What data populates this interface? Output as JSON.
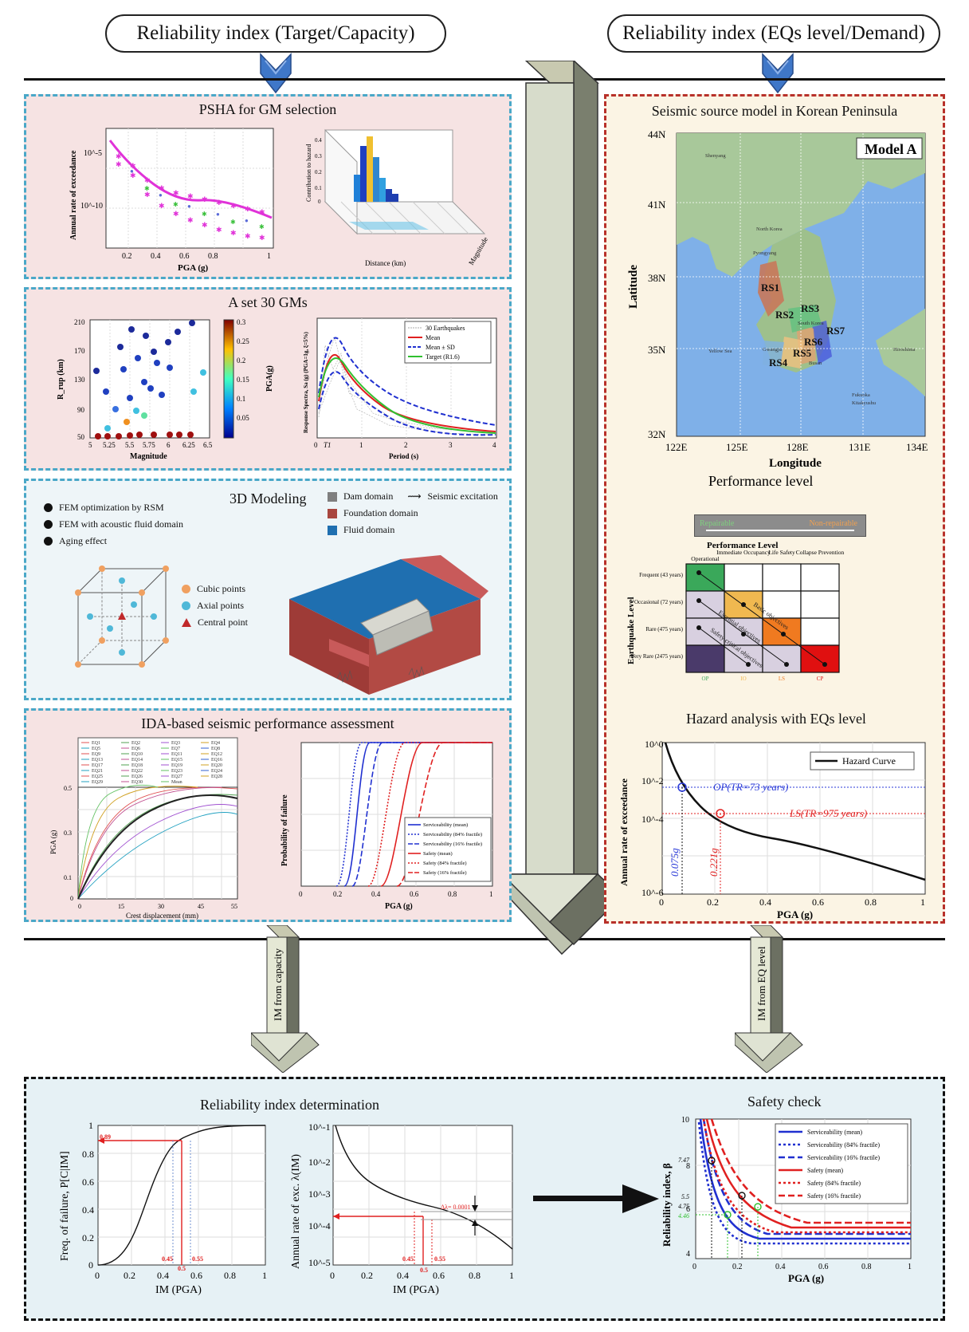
{
  "header": {
    "left_pill": "Reliability index (Target/Capacity)",
    "right_pill": "Reliability index (EQs level/Demand)"
  },
  "left": {
    "psha": {
      "title": "PSHA for GM selection",
      "ylabel": "Annual rate of exceedance",
      "xlabel": "PGA (g)",
      "xticks": [
        "0.2",
        "0.4",
        "0.6",
        "0.8",
        "1"
      ],
      "yticks": [
        "10^-5",
        "10^-10"
      ],
      "deagg_zlabel": "Contribution to hazard",
      "deagg_xlabel": "Distance (km)",
      "deagg_ylabel": "Magnitude",
      "deagg_zticks": [
        "0.4",
        "0.3",
        "0.2",
        "0.1",
        "0"
      ]
    },
    "gm_set": {
      "title": "A set 30 GMs",
      "scatter_ylabel": "R_rup (km)",
      "scatter_xlabel": "Magnitude",
      "scatter_xticks": [
        "5",
        "5.25",
        "5.5",
        "5.75",
        "6",
        "6.25",
        "6.5"
      ],
      "scatter_yticks": [
        "210",
        "170",
        "130",
        "90",
        "50"
      ],
      "colorbar_label": "PGA(g)",
      "colorbar_ticks": [
        "0.3",
        "0.25",
        "0.2",
        "0.15",
        "0.1",
        "0.05"
      ],
      "spectra_ylabel": "Response Spectra, Sa (g) (PGA=1g, ξ=5%)",
      "spectra_xlabel": "Period (s)",
      "spectra_xticks": [
        "0",
        "1",
        "2",
        "3",
        "4"
      ],
      "spectra_t1": "T1",
      "spectra_legend": [
        "30 Earthquakes",
        "Mean",
        "Mean ± SD",
        "Target (R1.6)"
      ]
    },
    "modeling": {
      "title": "3D Modeling",
      "bullets": [
        "FEM optimization by RSM",
        "FEM with acoustic fluid domain",
        "Aging effect"
      ],
      "cube_legend": [
        "Cubic points",
        "Axial points",
        "Central point"
      ],
      "domain_legend": [
        "Dam domain",
        "Foundation domain",
        "Fluid domain"
      ],
      "excitation_label": "Seismic excitation",
      "colors": {
        "dam": "#7f7f7f",
        "foundation": "#a8463f",
        "fluid": "#1f6fb0",
        "cubic": "#f0a060",
        "axial": "#4fb8d8",
        "central": "#c0282a"
      }
    },
    "ida": {
      "title": "IDA-based seismic performance assessment",
      "ida_ylabel": "PGA (g)",
      "ida_xlabel": "Crest displacement (mm)",
      "ida_xticks": [
        "0",
        "5",
        "10",
        "15",
        "20",
        "25",
        "30",
        "35",
        "40",
        "45",
        "50",
        "55"
      ],
      "ida_yticks": [
        "0.5",
        "0.45",
        "0.4",
        "0.35",
        "0.3",
        "0.25",
        "0.2",
        "0.15",
        "0.1",
        "0.05",
        "0"
      ],
      "ida_legend": [
        "EQ1",
        "EQ2",
        "EQ3",
        "EQ4",
        "EQ5",
        "EQ6",
        "EQ7",
        "EQ8",
        "EQ9",
        "EQ10",
        "EQ11",
        "EQ12",
        "EQ13",
        "EQ14",
        "EQ15",
        "EQ16",
        "EQ17",
        "EQ18",
        "EQ19",
        "EQ20",
        "EQ21",
        "EQ22",
        "EQ23",
        "EQ24",
        "EQ25",
        "EQ26",
        "EQ27",
        "EQ28",
        "EQ29",
        "EQ30",
        "Mean"
      ],
      "frag_ylabel": "Probability of failure",
      "frag_xlabel": "PGA (g)",
      "frag_xticks": [
        "0",
        "0.2",
        "0.4",
        "0.6",
        "0.8",
        "1"
      ],
      "frag_legend": [
        "Serviceability (mean)",
        "Serviceability (84% fractile)",
        "Serviceability (16% fractile)",
        "Safety (mean)",
        "Safety (84% fractile)",
        "Safety (16% fractile)"
      ]
    }
  },
  "right": {
    "map": {
      "title": "Seismic source model in Korean Peninsula",
      "model_label": "Model A",
      "ylabel": "Latitude",
      "xlabel": "Longitude",
      "yticks": [
        "44N",
        "41N",
        "38N",
        "35N",
        "32N"
      ],
      "xticks": [
        "122E",
        "125E",
        "128E",
        "131E",
        "134E"
      ],
      "place_labels": [
        "Shenyang",
        "North Korea",
        "South Korea",
        "Pyongyang",
        "Yellow Sea",
        "Gwangju",
        "Busan",
        "Hiroshima",
        "Fukuoka",
        "Kitakyushu"
      ],
      "zones": [
        "RS1",
        "RS2",
        "RS3",
        "RS4",
        "RS5",
        "RS6",
        "RS7"
      ]
    },
    "performance": {
      "title": "Performance level",
      "arrow_left": "Repairable",
      "arrow_right": "Non-repairable",
      "matrix_title": "Performance Level",
      "matrix_ylabel": "Earthquake Level",
      "columns": [
        "Operational",
        "Immediate Occupancy",
        "Life Safety",
        "Collapse Prevention"
      ],
      "rows": [
        "Frequent (43 years)",
        "Occasional (72 years)",
        "Rare (475 years)",
        "Very Rare (2475 years)"
      ],
      "bottom_labels": [
        "OP",
        "IO",
        "LS",
        "CP"
      ],
      "diag_labels": [
        "Basic objectives",
        "Essential objectives",
        "Safety critical objectives"
      ]
    },
    "hazard": {
      "title": "Hazard analysis with EQs level",
      "ylabel": "Annual rate of exceedance",
      "xlabel": "PGA (g)",
      "xticks": [
        "0",
        "0.2",
        "0.4",
        "0.6",
        "0.8",
        "1"
      ],
      "yticks": [
        "10^0",
        "10^-2",
        "10^-4",
        "10^-6"
      ],
      "legend": "Hazard Curve",
      "op_label": "OP(TR=73 years)",
      "ls_label": "LS(TR=975 years)",
      "op_value": "0.075g",
      "ls_value": "0.221g"
    }
  },
  "center_arrow": {
    "left_label": "IM from capacity",
    "right_label": "IM from EQ level"
  },
  "bottom": {
    "reliability": {
      "title": "Reliability index determination",
      "left_ylabel": "Freq. of failure, P[C|IM]",
      "left_xlabel": "IM (PGA)",
      "left_xticks": [
        "0",
        "0.2",
        "0.4",
        "0.6",
        "0.8",
        "1"
      ],
      "left_yticks": [
        "1",
        "0.8",
        "0.6",
        "0.4",
        "0.2",
        "0"
      ],
      "left_marks": [
        "0.89",
        "0.45",
        "0.5",
        "0.55"
      ],
      "right_ylabel": "Annual rate of exc. λ(IM)",
      "right_xlabel": "IM (PGA)",
      "right_xticks": [
        "0",
        "0.2",
        "0.4",
        "0.6",
        "0.8",
        "1"
      ],
      "right_yticks": [
        "10^-1",
        "10^-2",
        "10^-3",
        "10^-4",
        "10^-5"
      ],
      "right_marks": [
        "0.45",
        "0.5",
        "0.55",
        "Δλ= 0.0001"
      ]
    },
    "safety": {
      "title": "Safety check",
      "ylabel": "Reliability index, β",
      "xlabel": "PGA (g)",
      "xticks": [
        "0",
        "0.2",
        "0.4",
        "0.6",
        "0.8",
        "1"
      ],
      "yticks": [
        "10",
        "8",
        "6",
        "4"
      ],
      "marks": [
        "7.47",
        "5.5",
        "4.75",
        "4.46"
      ],
      "legend": [
        "Serviceability (mean)",
        "Serviceability (84% fractile)",
        "Serviceability (16% fractile)",
        "Safety (mean)",
        "Safety (84% fractile)",
        "Safety (16% fractile)"
      ]
    }
  }
}
